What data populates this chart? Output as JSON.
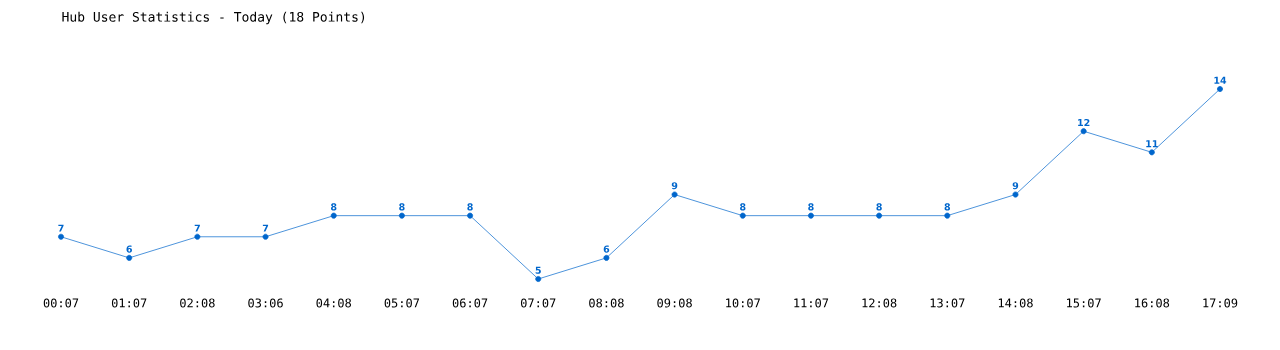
{
  "chart_data": {
    "type": "line",
    "title": "Hub User Statistics - Today (18 Points)",
    "categories": [
      "00:07",
      "01:07",
      "02:08",
      "03:06",
      "04:08",
      "05:07",
      "06:07",
      "07:07",
      "08:08",
      "09:08",
      "10:07",
      "11:07",
      "12:08",
      "13:07",
      "14:08",
      "15:07",
      "16:08",
      "17:09"
    ],
    "values": [
      7,
      6,
      7,
      7,
      8,
      8,
      8,
      5,
      6,
      9,
      8,
      8,
      8,
      8,
      9,
      12,
      11,
      14
    ],
    "color": "#0066cc",
    "data_labels": true,
    "marker": "circle",
    "line_style": "solid"
  }
}
